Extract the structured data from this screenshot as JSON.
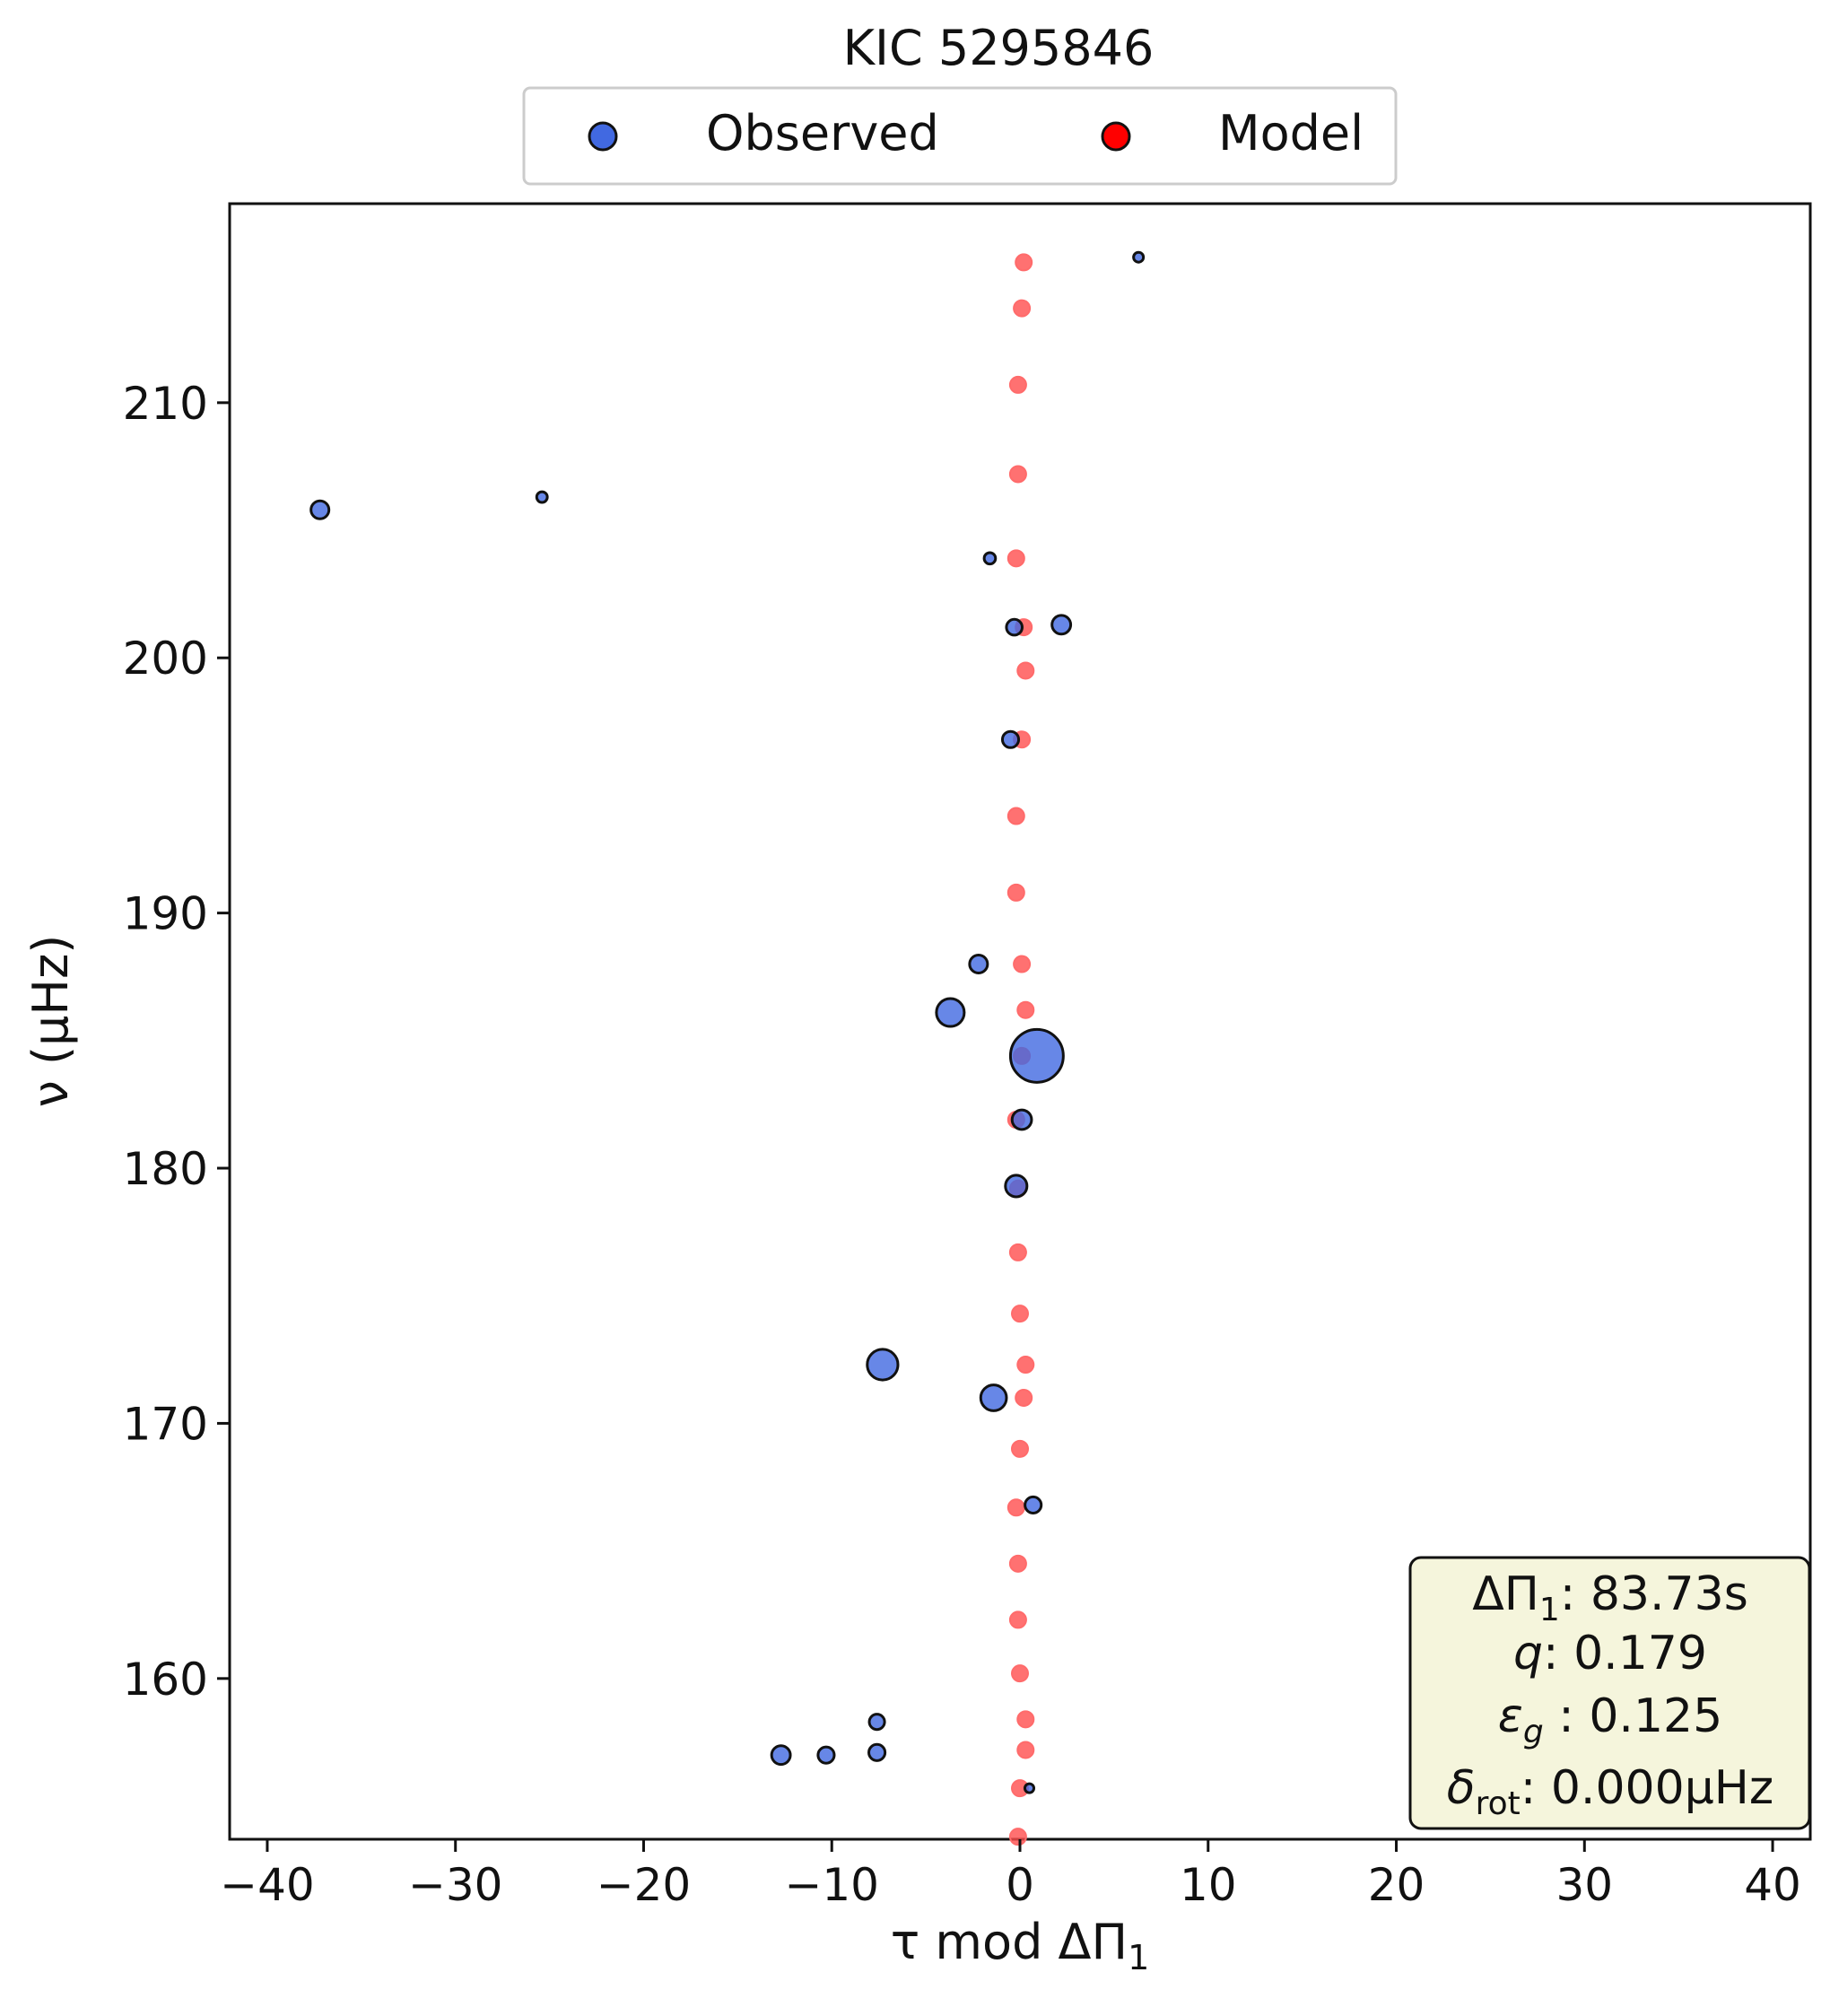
{
  "chart_data": {
    "type": "scatter",
    "title": "KIC 5295846",
    "xlabel": {
      "main": "τ mod ΔΠ",
      "sub": "1"
    },
    "ylabel": "ν (μHz)",
    "xlim": [
      -42,
      42
    ],
    "ylim": [
      153.7,
      217.8
    ],
    "xticks": [
      -40,
      -30,
      -20,
      -10,
      0,
      10,
      20,
      30,
      40
    ],
    "xtick_labels": [
      "−40",
      "−30",
      "−20",
      "−10",
      "0",
      "10",
      "20",
      "30",
      "40"
    ],
    "yticks": [
      160,
      170,
      180,
      190,
      200,
      210
    ],
    "ytick_labels": [
      "160",
      "170",
      "180",
      "190",
      "200",
      "210"
    ],
    "grid": false,
    "legend": {
      "placement": "top-center",
      "entries": [
        {
          "label": "Observed",
          "color": "#4169e1"
        },
        {
          "label": "Model",
          "color": "#ff0000"
        }
      ]
    },
    "series": [
      {
        "name": "Model",
        "color": "#ff4d4d",
        "points": [
          {
            "x": 0.2,
            "y": 215.5
          },
          {
            "x": 0.1,
            "y": 213.7
          },
          {
            "x": -0.1,
            "y": 210.7
          },
          {
            "x": -0.1,
            "y": 207.2
          },
          {
            "x": -0.2,
            "y": 203.9
          },
          {
            "x": 0.2,
            "y": 201.2
          },
          {
            "x": 0.3,
            "y": 199.5
          },
          {
            "x": 0.1,
            "y": 196.8
          },
          {
            "x": -0.2,
            "y": 193.8
          },
          {
            "x": -0.2,
            "y": 190.8
          },
          {
            "x": 0.1,
            "y": 188.0
          },
          {
            "x": 0.3,
            "y": 186.2
          },
          {
            "x": 0.1,
            "y": 184.4
          },
          {
            "x": -0.2,
            "y": 181.9
          },
          {
            "x": -0.1,
            "y": 179.2
          },
          {
            "x": -0.1,
            "y": 176.7
          },
          {
            "x": 0.0,
            "y": 174.3
          },
          {
            "x": 0.3,
            "y": 172.3
          },
          {
            "x": 0.2,
            "y": 171.0
          },
          {
            "x": 0.0,
            "y": 169.0
          },
          {
            "x": -0.2,
            "y": 166.7
          },
          {
            "x": -0.1,
            "y": 164.5
          },
          {
            "x": -0.1,
            "y": 162.3
          },
          {
            "x": 0.0,
            "y": 160.2
          },
          {
            "x": 0.3,
            "y": 158.4
          },
          {
            "x": 0.3,
            "y": 157.2
          },
          {
            "x": 0.0,
            "y": 155.7
          },
          {
            "x": -0.1,
            "y": 153.8
          }
        ]
      },
      {
        "name": "Observed",
        "color": "#4169e1",
        "points": [
          {
            "x": 6.3,
            "y": 215.7,
            "size": 0.25
          },
          {
            "x": -37.2,
            "y": 205.8,
            "size": 1.0
          },
          {
            "x": -25.4,
            "y": 206.3,
            "size": 0.3
          },
          {
            "x": -1.6,
            "y": 203.9,
            "size": 0.35
          },
          {
            "x": -0.3,
            "y": 201.2,
            "size": 0.75
          },
          {
            "x": 2.2,
            "y": 201.3,
            "size": 1.1
          },
          {
            "x": -0.5,
            "y": 196.8,
            "size": 0.8
          },
          {
            "x": -2.2,
            "y": 188.0,
            "size": 1.0
          },
          {
            "x": -3.7,
            "y": 186.1,
            "size": 2.6
          },
          {
            "x": 0.9,
            "y": 184.4,
            "size": 10.0
          },
          {
            "x": 0.1,
            "y": 181.9,
            "size": 1.2
          },
          {
            "x": -0.2,
            "y": 179.3,
            "size": 1.5
          },
          {
            "x": -7.3,
            "y": 172.3,
            "size": 3.2
          },
          {
            "x": -1.4,
            "y": 171.0,
            "size": 2.2
          },
          {
            "x": 0.7,
            "y": 166.8,
            "size": 0.8
          },
          {
            "x": -7.6,
            "y": 158.3,
            "size": 0.7
          },
          {
            "x": -12.7,
            "y": 157.0,
            "size": 1.1
          },
          {
            "x": -10.3,
            "y": 157.0,
            "size": 0.8
          },
          {
            "x": -7.6,
            "y": 157.1,
            "size": 0.8
          },
          {
            "x": 0.5,
            "y": 155.7,
            "size": 0.2
          }
        ]
      }
    ],
    "annotation": {
      "placement": "bottom-right",
      "lines": [
        {
          "main": "ΔΠ",
          "sub": "1",
          "value": ": 83.73s"
        },
        {
          "main": "q",
          "sub": "",
          "value": ":  0.179"
        },
        {
          "main": "ε",
          "sub": "g",
          "value": " : 0.125"
        },
        {
          "main": "δ",
          "sub": "rot",
          "value": ": 0.000μHz"
        }
      ]
    }
  }
}
